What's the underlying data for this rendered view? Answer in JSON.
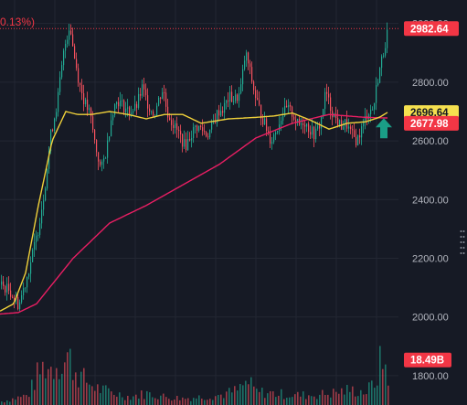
{
  "header": {
    "change_text": "0.13%)"
  },
  "colors": {
    "background": "#161a25",
    "grid": "#232733",
    "up": "#22ab94",
    "down": "#f7525f",
    "ma_fast": "#f0d13a",
    "ma_slow": "#e91e63",
    "axis_text": "#b2b5be",
    "badge_fast": "#f5e04f",
    "badge_slow": "#f23645",
    "arrow": "#1a9e86"
  },
  "icons": {
    "scroll_handle": "grip-dots-icon",
    "signal_arrow": "arrow-up-icon"
  },
  "chart_data": {
    "type": "candlestick",
    "title": "",
    "xlabel": "",
    "ylabel": "",
    "grid": true,
    "price_axis": {
      "ticks": [
        1800,
        2000,
        2200,
        2400,
        2600,
        2800,
        3000
      ],
      "ylim": [
        1700,
        3080
      ],
      "tick_labels": [
        "1800.00",
        "2000.00",
        "2200.00",
        "2400.00",
        "2600.00",
        "2800.00",
        "3000.00"
      ]
    },
    "last_price": {
      "value": 2982.64,
      "label": "2982.64"
    },
    "ma_fast": {
      "badge": {
        "value": 2696.64,
        "label": "2696.64"
      },
      "keypoints": [
        [
          0,
          2020
        ],
        [
          15,
          2045
        ],
        [
          28,
          2150
        ],
        [
          42,
          2380
        ],
        [
          57,
          2600
        ],
        [
          72,
          2700
        ],
        [
          85,
          2690
        ],
        [
          100,
          2690
        ],
        [
          120,
          2700
        ],
        [
          140,
          2690
        ],
        [
          160,
          2675
        ],
        [
          180,
          2690
        ],
        [
          200,
          2690
        ],
        [
          220,
          2660
        ],
        [
          250,
          2675
        ],
        [
          280,
          2680
        ],
        [
          300,
          2685
        ],
        [
          320,
          2695
        ],
        [
          340,
          2670
        ],
        [
          360,
          2640
        ],
        [
          380,
          2660
        ],
        [
          400,
          2665
        ],
        [
          415,
          2680
        ],
        [
          424,
          2697
        ]
      ]
    },
    "ma_slow": {
      "badge": {
        "value": 2677.98,
        "label": "2677.98"
      },
      "keypoints": [
        [
          0,
          2010
        ],
        [
          20,
          2015
        ],
        [
          40,
          2045
        ],
        [
          80,
          2200
        ],
        [
          120,
          2320
        ],
        [
          160,
          2380
        ],
        [
          200,
          2450
        ],
        [
          240,
          2520
        ],
        [
          280,
          2610
        ],
        [
          320,
          2660
        ],
        [
          360,
          2690
        ],
        [
          400,
          2680
        ],
        [
          424,
          2678
        ]
      ]
    },
    "price_path": [
      [
        0,
        2110
      ],
      [
        10,
        2090
      ],
      [
        20,
        2040
      ],
      [
        30,
        2150
      ],
      [
        40,
        2280
      ],
      [
        48,
        2430
      ],
      [
        55,
        2620
      ],
      [
        62,
        2730
      ],
      [
        70,
        2920
      ],
      [
        76,
        3000
      ],
      [
        80,
        2900
      ],
      [
        86,
        2800
      ],
      [
        92,
        2730
      ],
      [
        98,
        2690
      ],
      [
        104,
        2580
      ],
      [
        110,
        2500
      ],
      [
        116,
        2570
      ],
      [
        122,
        2700
      ],
      [
        128,
        2740
      ],
      [
        134,
        2720
      ],
      [
        140,
        2700
      ],
      [
        148,
        2710
      ],
      [
        155,
        2780
      ],
      [
        162,
        2720
      ],
      [
        168,
        2690
      ],
      [
        174,
        2750
      ],
      [
        178,
        2780
      ],
      [
        182,
        2700
      ],
      [
        190,
        2650
      ],
      [
        196,
        2620
      ],
      [
        202,
        2580
      ],
      [
        208,
        2620
      ],
      [
        214,
        2650
      ],
      [
        220,
        2640
      ],
      [
        226,
        2620
      ],
      [
        232,
        2650
      ],
      [
        238,
        2700
      ],
      [
        244,
        2710
      ],
      [
        250,
        2750
      ],
      [
        256,
        2740
      ],
      [
        262,
        2760
      ],
      [
        268,
        2900
      ],
      [
        272,
        2850
      ],
      [
        278,
        2760
      ],
      [
        284,
        2700
      ],
      [
        290,
        2650
      ],
      [
        296,
        2600
      ],
      [
        302,
        2640
      ],
      [
        308,
        2690
      ],
      [
        314,
        2710
      ],
      [
        320,
        2690
      ],
      [
        326,
        2650
      ],
      [
        332,
        2670
      ],
      [
        338,
        2640
      ],
      [
        344,
        2620
      ],
      [
        350,
        2660
      ],
      [
        356,
        2770
      ],
      [
        360,
        2720
      ],
      [
        366,
        2680
      ],
      [
        372,
        2650
      ],
      [
        378,
        2660
      ],
      [
        384,
        2620
      ],
      [
        390,
        2600
      ],
      [
        396,
        2650
      ],
      [
        402,
        2700
      ],
      [
        408,
        2710
      ],
      [
        412,
        2800
      ],
      [
        416,
        2860
      ],
      [
        420,
        2920
      ],
      [
        424,
        2982.64
      ]
    ],
    "volume": {
      "badge": {
        "value": 18.49,
        "label": "18.49B"
      },
      "unit": "B",
      "scale_max": 30,
      "peaks": [
        [
          0,
          2
        ],
        [
          30,
          6
        ],
        [
          40,
          18
        ],
        [
          48,
          24
        ],
        [
          56,
          22
        ],
        [
          62,
          27
        ],
        [
          68,
          25
        ],
        [
          74,
          30
        ],
        [
          80,
          22
        ],
        [
          90,
          16
        ],
        [
          100,
          12
        ],
        [
          110,
          9
        ],
        [
          120,
          8
        ],
        [
          140,
          5
        ],
        [
          160,
          7
        ],
        [
          180,
          5
        ],
        [
          200,
          4
        ],
        [
          220,
          5
        ],
        [
          240,
          6
        ],
        [
          260,
          9
        ],
        [
          270,
          14
        ],
        [
          280,
          8
        ],
        [
          300,
          7
        ],
        [
          320,
          6
        ],
        [
          340,
          6
        ],
        [
          360,
          7
        ],
        [
          380,
          9
        ],
        [
          400,
          8
        ],
        [
          410,
          14
        ],
        [
          416,
          27
        ],
        [
          420,
          25
        ],
        [
          424,
          18.49
        ]
      ]
    }
  }
}
